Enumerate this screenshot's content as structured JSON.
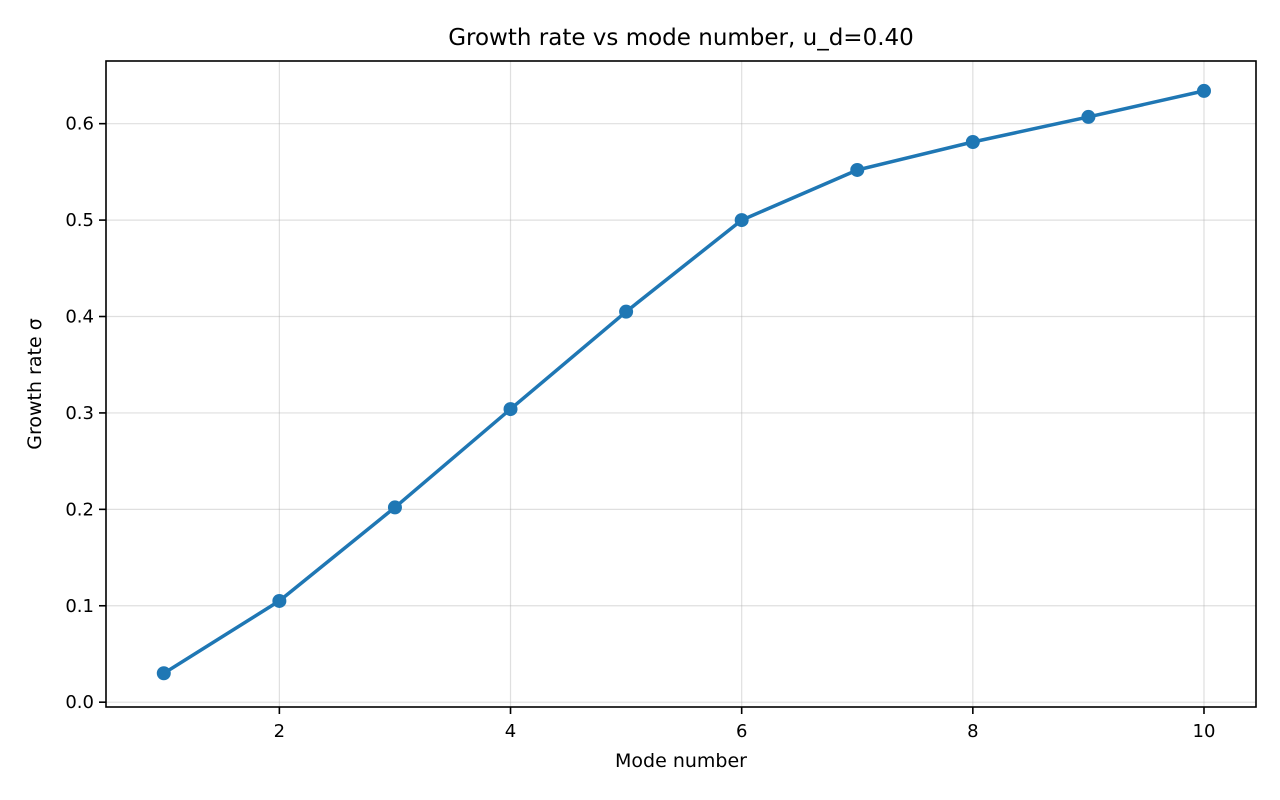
{
  "chart_data": {
    "type": "line",
    "title": "Growth rate vs mode number, u_d=0.40",
    "xlabel": "Mode number",
    "ylabel": "Growth rate σ",
    "xlim": [
      0.5,
      10.45
    ],
    "ylim": [
      -0.005,
      0.665
    ],
    "xticks": [
      2,
      4,
      6,
      8,
      10
    ],
    "yticks": [
      0.0,
      0.1,
      0.2,
      0.3,
      0.4,
      0.5,
      0.6
    ],
    "ytick_labels": [
      "0.0",
      "0.1",
      "0.2",
      "0.3",
      "0.4",
      "0.5",
      "0.6"
    ],
    "grid": true,
    "color": "#1f77b4",
    "x": [
      1,
      2,
      3,
      4,
      5,
      6,
      7,
      8,
      9,
      10
    ],
    "series": [
      {
        "values": [
          0.03,
          0.105,
          0.202,
          0.304,
          0.405,
          0.5,
          0.552,
          0.581,
          0.607,
          0.634
        ]
      }
    ]
  }
}
